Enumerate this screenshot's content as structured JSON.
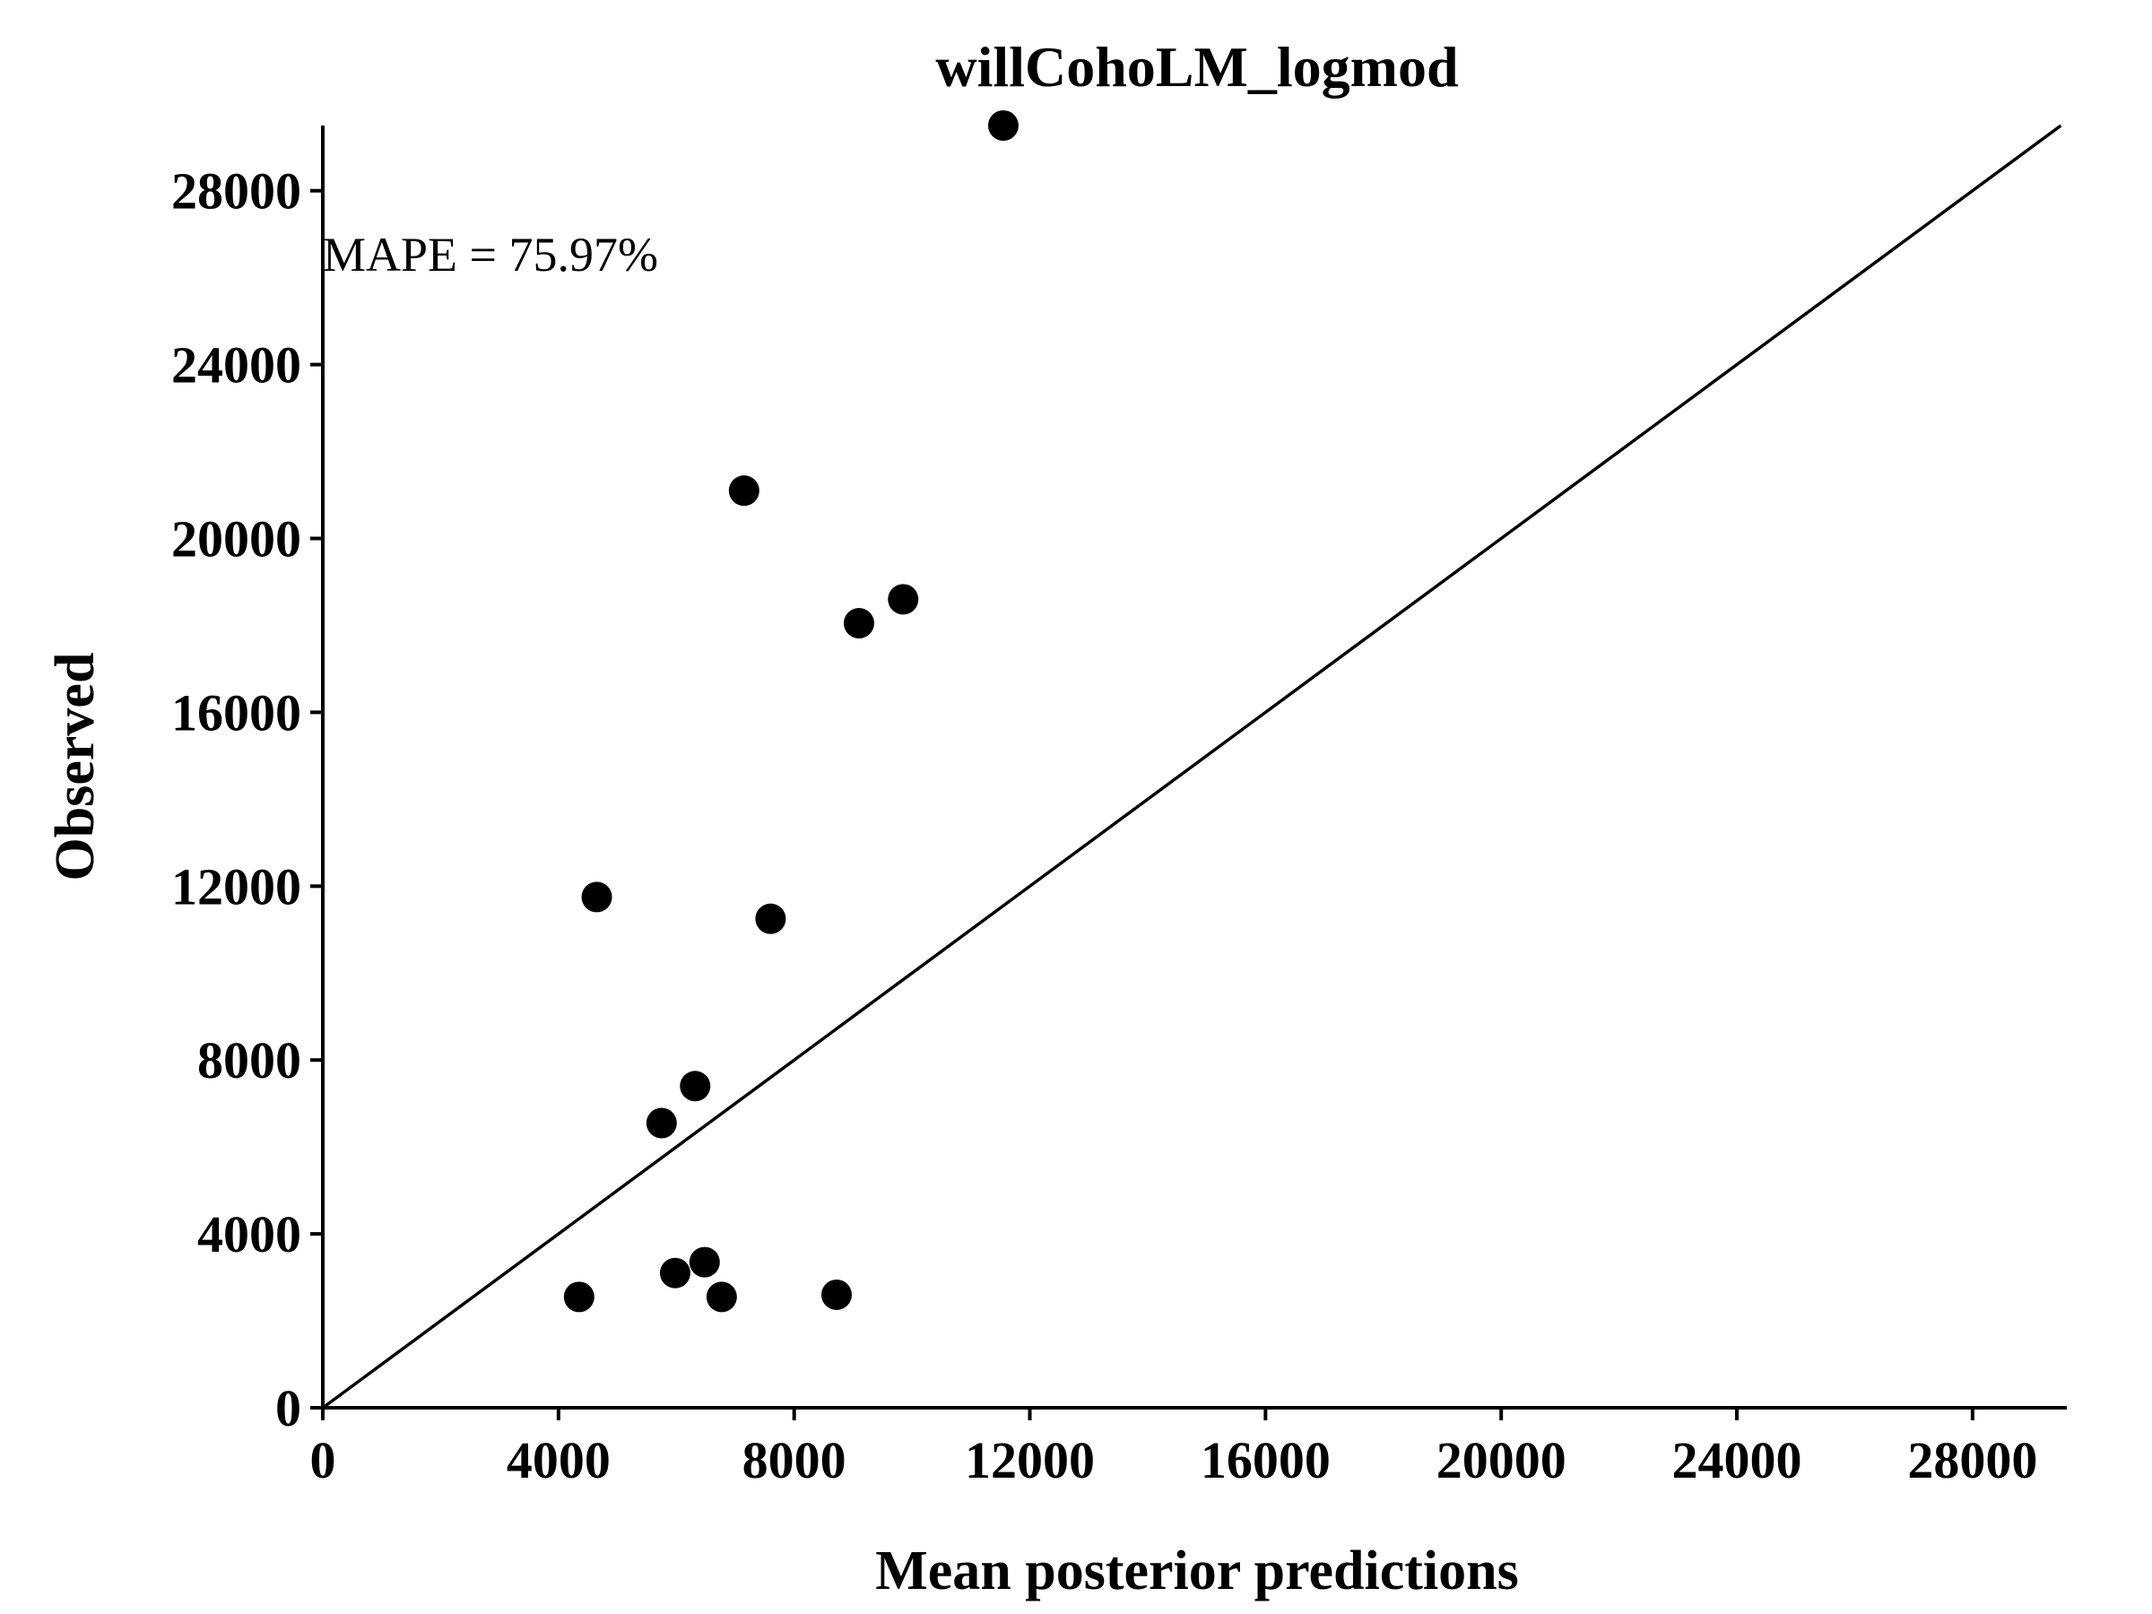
{
  "chart_data": {
    "type": "scatter",
    "title": "willCohoLM_logmod",
    "xlabel": "Mean posterior predictions",
    "ylabel": "Observed",
    "xlim": [
      0,
      29600
    ],
    "ylim": [
      0,
      29500
    ],
    "xticks": [
      0,
      4000,
      8000,
      12000,
      16000,
      20000,
      24000,
      28000
    ],
    "yticks": [
      0,
      4000,
      8000,
      12000,
      16000,
      20000,
      24000,
      28000
    ],
    "xtick_labels": [
      "0",
      "4000",
      "8000",
      "12000",
      "16000",
      "20000",
      "24000",
      "28000"
    ],
    "ytick_labels": [
      "0",
      "4000",
      "8000",
      "12000",
      "16000",
      "20000",
      "24000",
      "28000"
    ],
    "annotation": "MAPE = 75.97%",
    "reference_line": "y = x",
    "grid": false,
    "legend": "none",
    "point_color": "#000000",
    "points": [
      {
        "x": 11550,
        "y": 29500
      },
      {
        "x": 7150,
        "y": 21100
      },
      {
        "x": 9850,
        "y": 18600
      },
      {
        "x": 9100,
        "y": 18050
      },
      {
        "x": 4650,
        "y": 11750
      },
      {
        "x": 7600,
        "y": 11250
      },
      {
        "x": 6320,
        "y": 7400
      },
      {
        "x": 5750,
        "y": 6550
      },
      {
        "x": 6480,
        "y": 3350
      },
      {
        "x": 5980,
        "y": 3100
      },
      {
        "x": 4350,
        "y": 2550
      },
      {
        "x": 6770,
        "y": 2550
      },
      {
        "x": 8720,
        "y": 2600
      }
    ]
  }
}
